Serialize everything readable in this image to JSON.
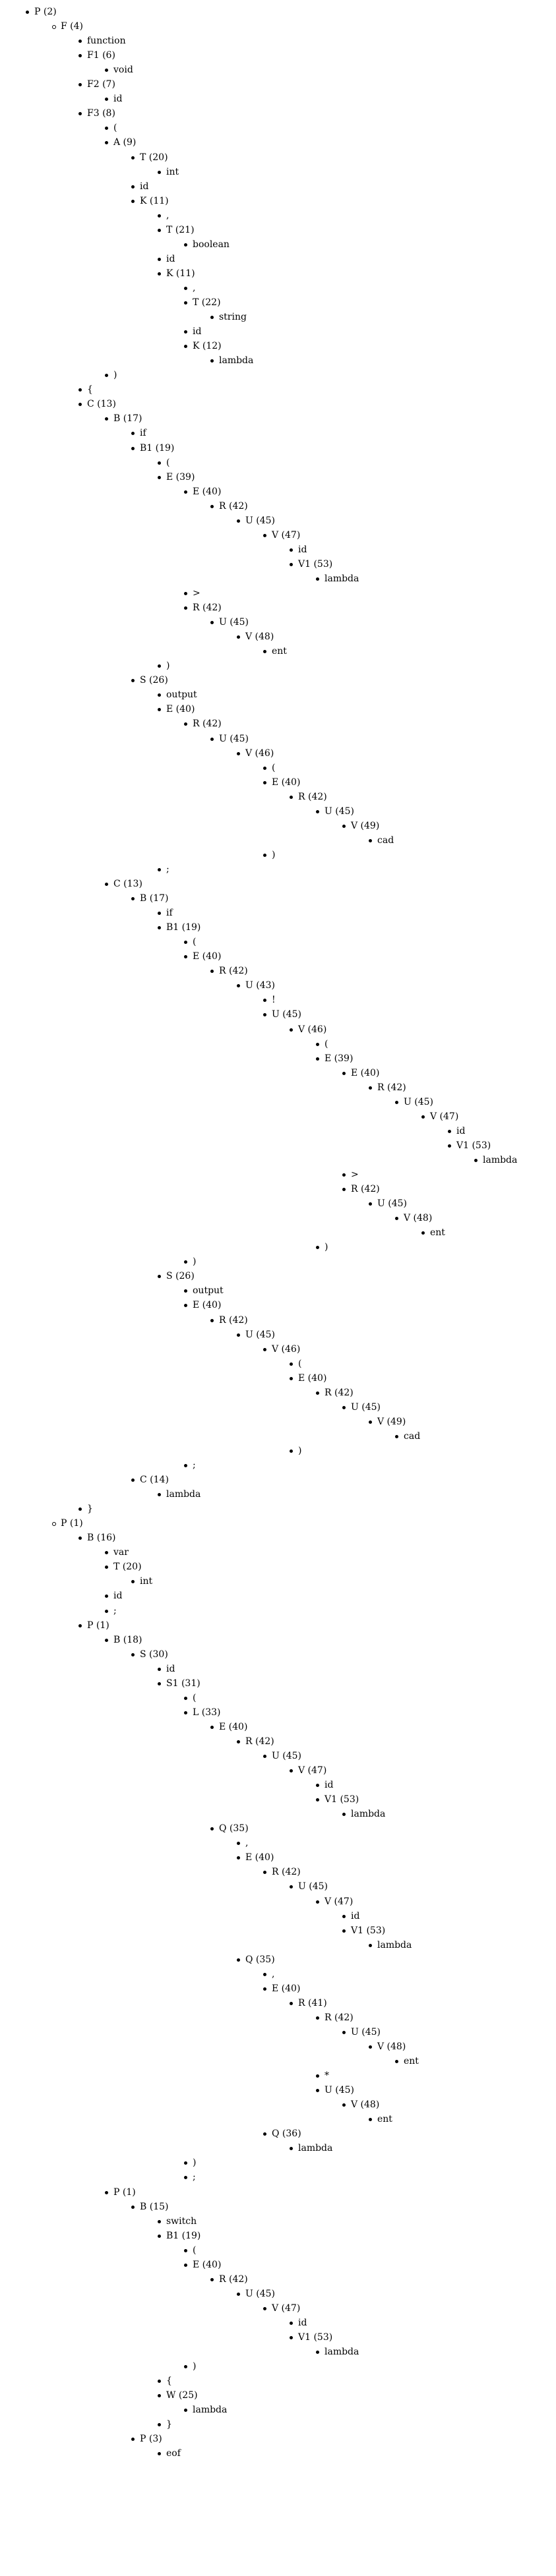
{
  "tree": [
    {
      "label": "P (2)",
      "depth": 0,
      "open": false
    },
    {
      "label": "F (4)",
      "depth": 1,
      "open": true
    },
    {
      "label": "function",
      "depth": 2,
      "open": false
    },
    {
      "label": "F1 (6)",
      "depth": 2,
      "open": false
    },
    {
      "label": "void",
      "depth": 3,
      "open": false
    },
    {
      "label": "F2 (7)",
      "depth": 2,
      "open": false
    },
    {
      "label": "id",
      "depth": 3,
      "open": false
    },
    {
      "label": "F3 (8)",
      "depth": 2,
      "open": false
    },
    {
      "label": "(",
      "depth": 3,
      "open": false
    },
    {
      "label": "A (9)",
      "depth": 3,
      "open": false
    },
    {
      "label": "T (20)",
      "depth": 4,
      "open": false
    },
    {
      "label": "int",
      "depth": 5,
      "open": false
    },
    {
      "label": "id",
      "depth": 4,
      "open": false
    },
    {
      "label": "K (11)",
      "depth": 4,
      "open": false
    },
    {
      "label": ",",
      "depth": 5,
      "open": false
    },
    {
      "label": "T (21)",
      "depth": 5,
      "open": false
    },
    {
      "label": "boolean",
      "depth": 6,
      "open": false
    },
    {
      "label": "id",
      "depth": 5,
      "open": false
    },
    {
      "label": "K (11)",
      "depth": 5,
      "open": false
    },
    {
      "label": ",",
      "depth": 6,
      "open": false
    },
    {
      "label": "T (22)",
      "depth": 6,
      "open": false
    },
    {
      "label": "string",
      "depth": 7,
      "open": false
    },
    {
      "label": "id",
      "depth": 6,
      "open": false
    },
    {
      "label": "K (12)",
      "depth": 6,
      "open": false
    },
    {
      "label": "lambda",
      "depth": 7,
      "open": false
    },
    {
      "label": ")",
      "depth": 3,
      "open": false
    },
    {
      "label": "{",
      "depth": 2,
      "open": false
    },
    {
      "label": "C (13)",
      "depth": 2,
      "open": false
    },
    {
      "label": "B (17)",
      "depth": 3,
      "open": false
    },
    {
      "label": "if",
      "depth": 4,
      "open": false
    },
    {
      "label": "B1 (19)",
      "depth": 4,
      "open": false
    },
    {
      "label": "(",
      "depth": 5,
      "open": false
    },
    {
      "label": "E (39)",
      "depth": 5,
      "open": false
    },
    {
      "label": "E (40)",
      "depth": 6,
      "open": false
    },
    {
      "label": "R (42)",
      "depth": 7,
      "open": false
    },
    {
      "label": "U (45)",
      "depth": 8,
      "open": false
    },
    {
      "label": "V (47)",
      "depth": 9,
      "open": false
    },
    {
      "label": "id",
      "depth": 10,
      "open": false
    },
    {
      "label": "V1 (53)",
      "depth": 10,
      "open": false
    },
    {
      "label": "lambda",
      "depth": 11,
      "open": false
    },
    {
      "label": ">",
      "depth": 6,
      "open": false
    },
    {
      "label": "R (42)",
      "depth": 6,
      "open": false
    },
    {
      "label": "U (45)",
      "depth": 7,
      "open": false
    },
    {
      "label": "V (48)",
      "depth": 8,
      "open": false
    },
    {
      "label": "ent",
      "depth": 9,
      "open": false
    },
    {
      "label": ")",
      "depth": 5,
      "open": false
    },
    {
      "label": "S (26)",
      "depth": 4,
      "open": false
    },
    {
      "label": "output",
      "depth": 5,
      "open": false
    },
    {
      "label": "E (40)",
      "depth": 5,
      "open": false
    },
    {
      "label": "R (42)",
      "depth": 6,
      "open": false
    },
    {
      "label": "U (45)",
      "depth": 7,
      "open": false
    },
    {
      "label": "V (46)",
      "depth": 8,
      "open": false
    },
    {
      "label": "(",
      "depth": 9,
      "open": false
    },
    {
      "label": "E (40)",
      "depth": 9,
      "open": false
    },
    {
      "label": "R (42)",
      "depth": 10,
      "open": false
    },
    {
      "label": "U (45)",
      "depth": 11,
      "open": false
    },
    {
      "label": "V (49)",
      "depth": 12,
      "open": false
    },
    {
      "label": "cad",
      "depth": 13,
      "open": false
    },
    {
      "label": ")",
      "depth": 9,
      "open": false
    },
    {
      "label": ";",
      "depth": 5,
      "open": false
    },
    {
      "label": "C (13)",
      "depth": 3,
      "open": false
    },
    {
      "label": "B (17)",
      "depth": 4,
      "open": false
    },
    {
      "label": "if",
      "depth": 5,
      "open": false
    },
    {
      "label": "B1 (19)",
      "depth": 5,
      "open": false
    },
    {
      "label": "(",
      "depth": 6,
      "open": false
    },
    {
      "label": "E (40)",
      "depth": 6,
      "open": false
    },
    {
      "label": "R (42)",
      "depth": 7,
      "open": false
    },
    {
      "label": "U (43)",
      "depth": 8,
      "open": false
    },
    {
      "label": "!",
      "depth": 9,
      "open": false
    },
    {
      "label": "U (45)",
      "depth": 9,
      "open": false
    },
    {
      "label": "V (46)",
      "depth": 10,
      "open": false
    },
    {
      "label": "(",
      "depth": 11,
      "open": false
    },
    {
      "label": "E (39)",
      "depth": 11,
      "open": false
    },
    {
      "label": "E (40)",
      "depth": 12,
      "open": false
    },
    {
      "label": "R (42)",
      "depth": 13,
      "open": false
    },
    {
      "label": "U (45)",
      "depth": 14,
      "open": false
    },
    {
      "label": "V (47)",
      "depth": 15,
      "open": false
    },
    {
      "label": "id",
      "depth": 16,
      "open": false
    },
    {
      "label": "V1 (53)",
      "depth": 16,
      "open": false
    },
    {
      "label": "lambda",
      "depth": 17,
      "open": false
    },
    {
      "label": ">",
      "depth": 12,
      "open": false
    },
    {
      "label": "R (42)",
      "depth": 12,
      "open": false
    },
    {
      "label": "U (45)",
      "depth": 13,
      "open": false
    },
    {
      "label": "V (48)",
      "depth": 14,
      "open": false
    },
    {
      "label": "ent",
      "depth": 15,
      "open": false
    },
    {
      "label": ")",
      "depth": 11,
      "open": false
    },
    {
      "label": ")",
      "depth": 6,
      "open": false
    },
    {
      "label": "S (26)",
      "depth": 5,
      "open": false
    },
    {
      "label": "output",
      "depth": 6,
      "open": false
    },
    {
      "label": "E (40)",
      "depth": 6,
      "open": false
    },
    {
      "label": "R (42)",
      "depth": 7,
      "open": false
    },
    {
      "label": "U (45)",
      "depth": 8,
      "open": false
    },
    {
      "label": "V (46)",
      "depth": 9,
      "open": false
    },
    {
      "label": "(",
      "depth": 10,
      "open": false
    },
    {
      "label": "E (40)",
      "depth": 10,
      "open": false
    },
    {
      "label": "R (42)",
      "depth": 11,
      "open": false
    },
    {
      "label": "U (45)",
      "depth": 12,
      "open": false
    },
    {
      "label": "V (49)",
      "depth": 13,
      "open": false
    },
    {
      "label": "cad",
      "depth": 14,
      "open": false
    },
    {
      "label": ")",
      "depth": 10,
      "open": false
    },
    {
      "label": ";",
      "depth": 6,
      "open": false
    },
    {
      "label": "C (14)",
      "depth": 4,
      "open": false
    },
    {
      "label": "lambda",
      "depth": 5,
      "open": false
    },
    {
      "label": "}",
      "depth": 2,
      "open": false
    },
    {
      "label": "P (1)",
      "depth": 1,
      "open": true
    },
    {
      "label": "B (16)",
      "depth": 2,
      "open": false
    },
    {
      "label": "var",
      "depth": 3,
      "open": false
    },
    {
      "label": "T (20)",
      "depth": 3,
      "open": false
    },
    {
      "label": "int",
      "depth": 4,
      "open": false
    },
    {
      "label": "id",
      "depth": 3,
      "open": false
    },
    {
      "label": ";",
      "depth": 3,
      "open": false
    },
    {
      "label": "P (1)",
      "depth": 2,
      "open": false
    },
    {
      "label": "B (18)",
      "depth": 3,
      "open": false
    },
    {
      "label": "S (30)",
      "depth": 4,
      "open": false
    },
    {
      "label": "id",
      "depth": 5,
      "open": false
    },
    {
      "label": "S1 (31)",
      "depth": 5,
      "open": false
    },
    {
      "label": "(",
      "depth": 6,
      "open": false
    },
    {
      "label": "L (33)",
      "depth": 6,
      "open": false
    },
    {
      "label": "E (40)",
      "depth": 7,
      "open": false
    },
    {
      "label": "R (42)",
      "depth": 8,
      "open": false
    },
    {
      "label": "U (45)",
      "depth": 9,
      "open": false
    },
    {
      "label": "V (47)",
      "depth": 10,
      "open": false
    },
    {
      "label": "id",
      "depth": 11,
      "open": false
    },
    {
      "label": "V1 (53)",
      "depth": 11,
      "open": false
    },
    {
      "label": "lambda",
      "depth": 12,
      "open": false
    },
    {
      "label": "Q (35)",
      "depth": 7,
      "open": false
    },
    {
      "label": ",",
      "depth": 8,
      "open": false
    },
    {
      "label": "E (40)",
      "depth": 8,
      "open": false
    },
    {
      "label": "R (42)",
      "depth": 9,
      "open": false
    },
    {
      "label": "U (45)",
      "depth": 10,
      "open": false
    },
    {
      "label": "V (47)",
      "depth": 11,
      "open": false
    },
    {
      "label": "id",
      "depth": 12,
      "open": false
    },
    {
      "label": "V1 (53)",
      "depth": 12,
      "open": false
    },
    {
      "label": "lambda",
      "depth": 13,
      "open": false
    },
    {
      "label": "Q (35)",
      "depth": 8,
      "open": false
    },
    {
      "label": ",",
      "depth": 9,
      "open": false
    },
    {
      "label": "E (40)",
      "depth": 9,
      "open": false
    },
    {
      "label": "R (41)",
      "depth": 10,
      "open": false
    },
    {
      "label": "R (42)",
      "depth": 11,
      "open": false
    },
    {
      "label": "U (45)",
      "depth": 12,
      "open": false
    },
    {
      "label": "V (48)",
      "depth": 13,
      "open": false
    },
    {
      "label": "ent",
      "depth": 14,
      "open": false
    },
    {
      "label": "*",
      "depth": 11,
      "open": false
    },
    {
      "label": "U (45)",
      "depth": 11,
      "open": false
    },
    {
      "label": "V (48)",
      "depth": 12,
      "open": false
    },
    {
      "label": "ent",
      "depth": 13,
      "open": false
    },
    {
      "label": "Q (36)",
      "depth": 9,
      "open": false
    },
    {
      "label": "lambda",
      "depth": 10,
      "open": false
    },
    {
      "label": ")",
      "depth": 6,
      "open": false
    },
    {
      "label": ";",
      "depth": 6,
      "open": false
    },
    {
      "label": "P (1)",
      "depth": 3,
      "open": false
    },
    {
      "label": "B (15)",
      "depth": 4,
      "open": false
    },
    {
      "label": "switch",
      "depth": 5,
      "open": false
    },
    {
      "label": "B1 (19)",
      "depth": 5,
      "open": false
    },
    {
      "label": "(",
      "depth": 6,
      "open": false
    },
    {
      "label": "E (40)",
      "depth": 6,
      "open": false
    },
    {
      "label": "R (42)",
      "depth": 7,
      "open": false
    },
    {
      "label": "U (45)",
      "depth": 8,
      "open": false
    },
    {
      "label": "V (47)",
      "depth": 9,
      "open": false
    },
    {
      "label": "id",
      "depth": 10,
      "open": false
    },
    {
      "label": "V1 (53)",
      "depth": 10,
      "open": false
    },
    {
      "label": "lambda",
      "depth": 11,
      "open": false
    },
    {
      "label": ")",
      "depth": 6,
      "open": false
    },
    {
      "label": "{",
      "depth": 5,
      "open": false
    },
    {
      "label": "W (25)",
      "depth": 5,
      "open": false
    },
    {
      "label": "lambda",
      "depth": 6,
      "open": false
    },
    {
      "label": "}",
      "depth": 5,
      "open": false
    },
    {
      "label": "P (3)",
      "depth": 4,
      "open": false
    },
    {
      "label": "eof",
      "depth": 5,
      "open": false
    }
  ]
}
